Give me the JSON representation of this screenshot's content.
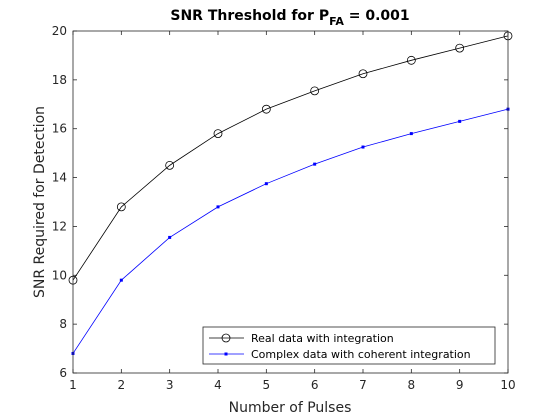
{
  "chart_data": {
    "type": "line",
    "title_main": "SNR Threshold for P",
    "title_sub": "FA",
    "title_tail": " = 0.001",
    "xlabel": "Number of Pulses",
    "ylabel": "SNR Required for Detection",
    "xlim": [
      1,
      10
    ],
    "ylim": [
      6,
      20
    ],
    "xticks": [
      1,
      2,
      3,
      4,
      5,
      6,
      7,
      8,
      9,
      10
    ],
    "yticks": [
      6,
      8,
      10,
      12,
      14,
      16,
      18,
      20
    ],
    "x": [
      1,
      2,
      3,
      4,
      5,
      6,
      7,
      8,
      9,
      10
    ],
    "grid": false,
    "legend_position": "bottom-right",
    "series": [
      {
        "name": "Real data with integration",
        "values": [
          9.8,
          12.8,
          14.5,
          15.8,
          16.8,
          17.55,
          18.25,
          18.8,
          19.3,
          19.8
        ],
        "color": "#000000",
        "marker": "circle"
      },
      {
        "name": "Complex data with coherent integration",
        "values": [
          6.8,
          9.8,
          11.55,
          12.8,
          13.75,
          14.55,
          15.25,
          15.8,
          16.3,
          16.8
        ],
        "color": "#0000ff",
        "marker": "point"
      }
    ]
  }
}
